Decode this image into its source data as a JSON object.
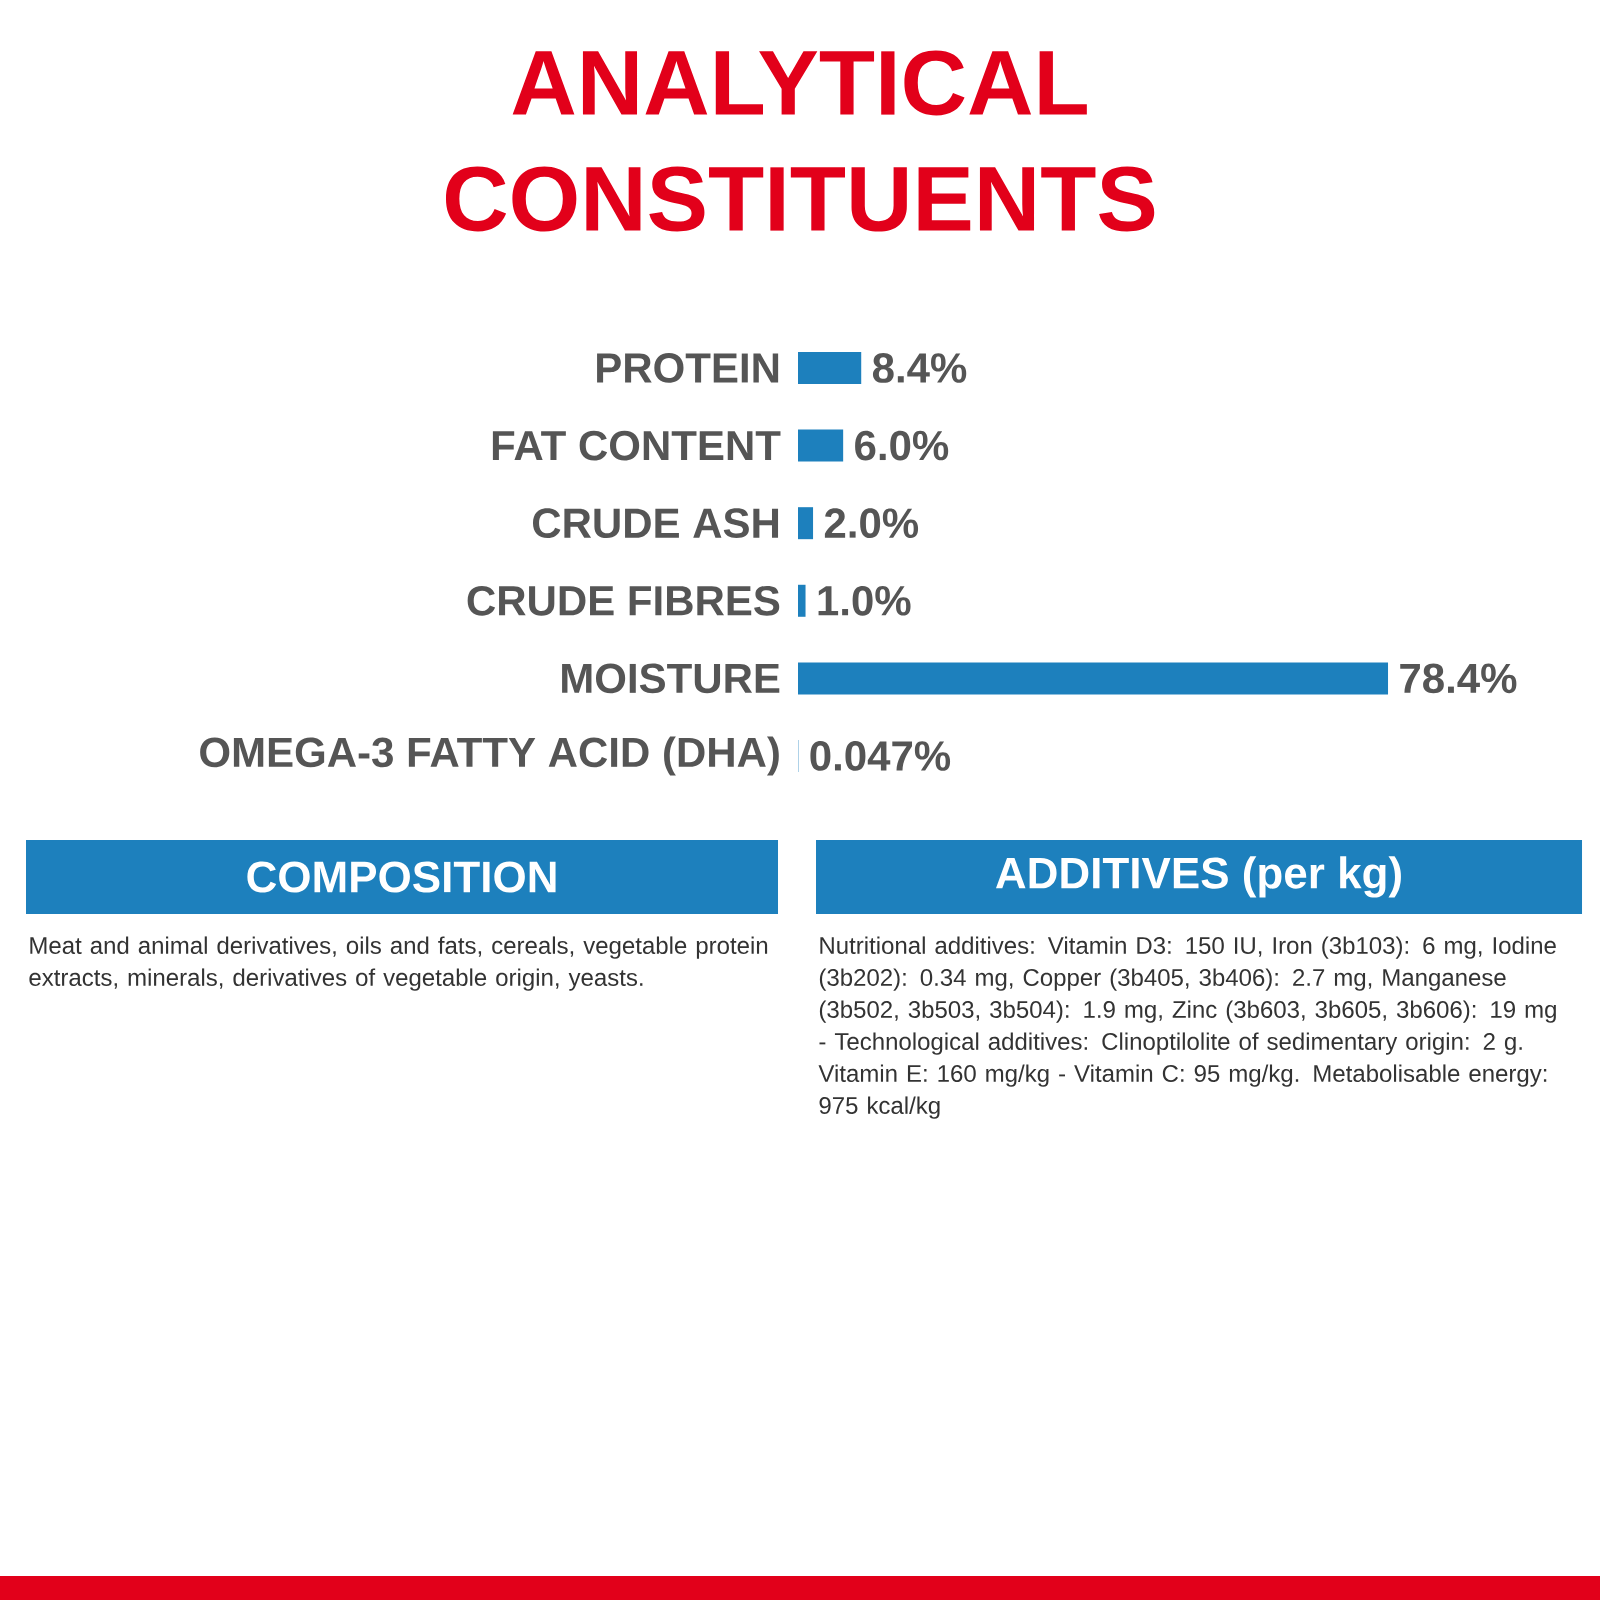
{
  "chart_data": {
    "type": "bar",
    "orientation": "horizontal",
    "title": "ANALYTICAL CONSTITUENTS",
    "categories": [
      "PROTEIN",
      "FAT CONTENT",
      "CRUDE ASH",
      "CRUDE FIBRES",
      "MOISTURE",
      "OMEGA-3 FATTY ACID (DHA)"
    ],
    "values": [
      8.4,
      6.0,
      2.0,
      1.0,
      78.4,
      0.047
    ],
    "value_labels": [
      "8.4%",
      "6.0%",
      "2.0%",
      "1.0%",
      "78.4%",
      "0.047%"
    ],
    "color": "#1d80bd",
    "annotations": [
      "COMPOSITION",
      "Meat and animal derivatives, oils and fats, cereals, vegetable protein extracts, minerals, derivatives of vegetable origin, yeasts.",
      "ADDITIVES (per kg)",
      "Nutritional additives: Vitamin D3: 150 IU, Iron (3b103): 6 mg, Iodine (3b202): 0.34 mg, Copper (3b405, 3b406): 2.7 mg, Manganese (3b502, 3b503, 3b504): 1.9 mg, Zinc (3b603, 3b605, 3b606): 19 mg - Technological additives: Clinoptilolite of sedimentary origin: 2 g. Vitamin E: 160 mg/kg - Vitamin C: 95 mg/kg. Metabolisable energy: 975 kcal/kg"
    ]
  }
}
